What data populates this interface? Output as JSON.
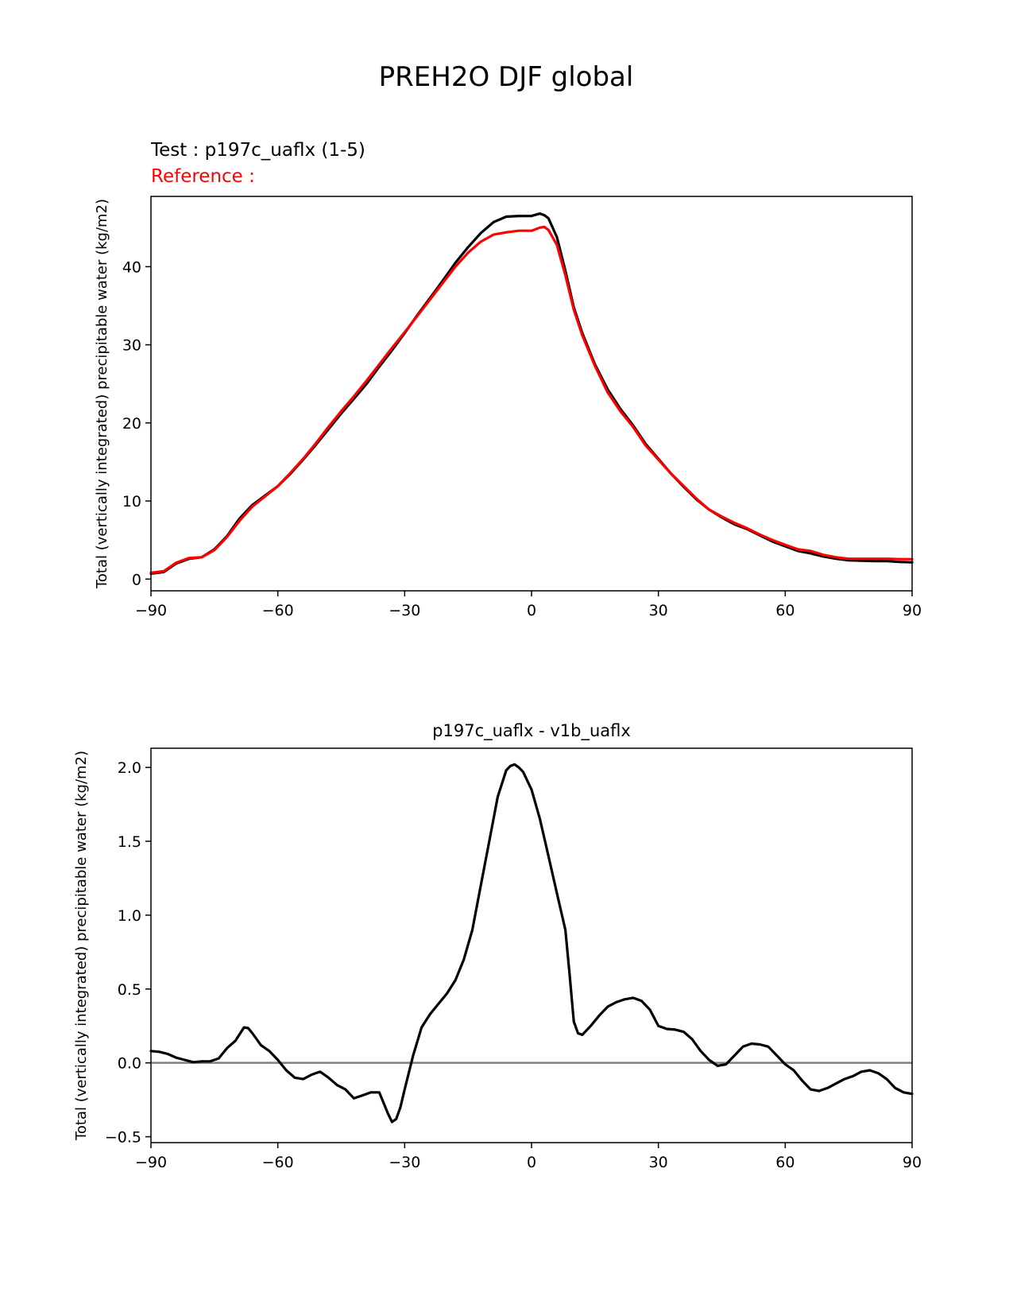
{
  "figure": {
    "title": "PREH2O DJF global"
  },
  "chart_data": [
    {
      "type": "line",
      "title": "",
      "test_label": "Test : p197c_uaflx (1-5)",
      "reference_label": "Reference :",
      "xlabel": "",
      "ylabel": "Total (vertically integrated) precipitable water (kg/m2)",
      "xlim": [
        -90,
        90
      ],
      "ylim": [
        -1.5,
        49
      ],
      "xticks": [
        -90,
        -60,
        -30,
        0,
        30,
        60,
        90
      ],
      "xtick_labels": [
        "−90",
        "−60",
        "−30",
        "0",
        "30",
        "60",
        "90"
      ],
      "yticks": [
        0,
        10,
        20,
        30,
        40
      ],
      "ytick_labels": [
        "0",
        "10",
        "20",
        "30",
        "40"
      ],
      "grid": false,
      "legend": "none",
      "series": [
        {
          "color": "#000000",
          "x": [
            -90,
            -87,
            -84,
            -81,
            -78,
            -75,
            -72,
            -69,
            -66,
            -63,
            -60,
            -57,
            -54,
            -51,
            -48,
            -45,
            -42,
            -39,
            -36,
            -33,
            -30,
            -27,
            -24,
            -21,
            -18,
            -15,
            -12,
            -9,
            -6,
            -3,
            0,
            2,
            3,
            4,
            6,
            8,
            10,
            12,
            15,
            18,
            21,
            24,
            27,
            30,
            33,
            36,
            39,
            42,
            45,
            48,
            51,
            54,
            57,
            60,
            63,
            66,
            69,
            72,
            75,
            78,
            81,
            84,
            87,
            90
          ],
          "values": [
            0.7,
            0.9,
            2.0,
            2.6,
            2.8,
            3.8,
            5.5,
            7.8,
            9.5,
            10.7,
            11.9,
            13.5,
            15.3,
            17.2,
            19.2,
            21.2,
            23.1,
            25.0,
            27.2,
            29.3,
            31.5,
            33.8,
            36.0,
            38.2,
            40.5,
            42.5,
            44.3,
            45.7,
            46.4,
            46.5,
            46.5,
            46.8,
            46.6,
            46.2,
            43.8,
            39.5,
            34.8,
            31.5,
            27.5,
            24.3,
            21.8,
            19.7,
            17.3,
            15.4,
            13.5,
            11.8,
            10.2,
            8.9,
            7.9,
            7.0,
            6.4,
            5.6,
            4.8,
            4.2,
            3.6,
            3.3,
            2.9,
            2.6,
            2.4,
            2.35,
            2.3,
            2.3,
            2.2,
            2.15
          ]
        },
        {
          "color": "#ff0000",
          "x": [
            -90,
            -87,
            -84,
            -81,
            -78,
            -75,
            -72,
            -69,
            -66,
            -63,
            -60,
            -57,
            -54,
            -51,
            -48,
            -45,
            -42,
            -39,
            -36,
            -33,
            -30,
            -27,
            -24,
            -21,
            -18,
            -15,
            -12,
            -9,
            -6,
            -3,
            0,
            2,
            3,
            4,
            6,
            8,
            10,
            12,
            15,
            18,
            21,
            24,
            27,
            30,
            33,
            36,
            39,
            42,
            45,
            48,
            51,
            54,
            57,
            60,
            63,
            66,
            69,
            72,
            75,
            78,
            81,
            84,
            87,
            90
          ],
          "values": [
            0.8,
            1.0,
            2.1,
            2.7,
            2.8,
            3.7,
            5.4,
            7.5,
            9.3,
            10.6,
            11.9,
            13.6,
            15.4,
            17.4,
            19.5,
            21.5,
            23.4,
            25.4,
            27.5,
            29.6,
            31.6,
            33.7,
            35.8,
            37.9,
            40.0,
            41.8,
            43.2,
            44.1,
            44.4,
            44.6,
            44.6,
            45.0,
            45.1,
            44.7,
            42.8,
            38.9,
            34.5,
            31.2,
            27.3,
            23.9,
            21.5,
            19.5,
            17.1,
            15.3,
            13.5,
            11.9,
            10.3,
            8.9,
            8.0,
            7.2,
            6.5,
            5.7,
            5.0,
            4.4,
            3.8,
            3.6,
            3.1,
            2.8,
            2.6,
            2.6,
            2.6,
            2.6,
            2.55,
            2.55
          ]
        }
      ]
    },
    {
      "type": "line",
      "title": "p197c_uaflx - v1b_uaflx",
      "xlabel": "",
      "ylabel": "Total (vertically integrated) precipitable water (kg/m2)",
      "xlim": [
        -90,
        90
      ],
      "ylim": [
        -0.54,
        2.13
      ],
      "xticks": [
        -90,
        -60,
        -30,
        0,
        30,
        60,
        90
      ],
      "xtick_labels": [
        "−90",
        "−60",
        "−30",
        "0",
        "30",
        "60",
        "90"
      ],
      "yticks": [
        -0.5,
        0.0,
        0.5,
        1.0,
        1.5,
        2.0
      ],
      "ytick_labels": [
        "−0.5",
        "0.0",
        "0.5",
        "1.0",
        "1.5",
        "2.0"
      ],
      "grid": false,
      "legend": "none",
      "zero_line": {
        "y": 0,
        "color": "#808080"
      },
      "series": [
        {
          "color": "#000000",
          "x": [
            -90,
            -88,
            -86,
            -84,
            -82,
            -80,
            -78,
            -76,
            -74,
            -72,
            -70,
            -68,
            -67,
            -66,
            -64,
            -62,
            -60,
            -58,
            -56,
            -54,
            -52,
            -50,
            -48,
            -46,
            -44,
            -42,
            -40,
            -38,
            -36,
            -34,
            -33,
            -32,
            -31,
            -30,
            -28,
            -26,
            -24,
            -22,
            -20,
            -18,
            -16,
            -14,
            -12,
            -10,
            -8,
            -6,
            -5,
            -4,
            -3,
            -2,
            0,
            2,
            4,
            6,
            8,
            9,
            10,
            11,
            12,
            14,
            16,
            18,
            20,
            22,
            24,
            25,
            26,
            28,
            30,
            32,
            34,
            36,
            38,
            40,
            42,
            44,
            46,
            48,
            50,
            52,
            54,
            56,
            58,
            60,
            62,
            64,
            66,
            68,
            70,
            72,
            74,
            76,
            78,
            80,
            82,
            84,
            86,
            88,
            90
          ],
          "values": [
            0.08,
            0.075,
            0.06,
            0.035,
            0.02,
            0.005,
            0.01,
            0.01,
            0.03,
            0.1,
            0.15,
            0.24,
            0.235,
            0.2,
            0.12,
            0.08,
            0.02,
            -0.05,
            -0.1,
            -0.11,
            -0.08,
            -0.06,
            -0.1,
            -0.15,
            -0.18,
            -0.24,
            -0.22,
            -0.2,
            -0.2,
            -0.34,
            -0.4,
            -0.38,
            -0.3,
            -0.18,
            0.05,
            0.24,
            0.33,
            0.4,
            0.47,
            0.56,
            0.7,
            0.9,
            1.2,
            1.5,
            1.8,
            1.98,
            2.01,
            2.02,
            2.0,
            1.97,
            1.85,
            1.65,
            1.4,
            1.15,
            0.9,
            0.6,
            0.28,
            0.2,
            0.19,
            0.25,
            0.32,
            0.38,
            0.41,
            0.43,
            0.44,
            0.43,
            0.42,
            0.36,
            0.25,
            0.23,
            0.225,
            0.21,
            0.16,
            0.08,
            0.02,
            -0.02,
            -0.01,
            0.05,
            0.11,
            0.13,
            0.125,
            0.11,
            0.05,
            -0.01,
            -0.05,
            -0.12,
            -0.18,
            -0.19,
            -0.17,
            -0.14,
            -0.11,
            -0.09,
            -0.06,
            -0.05,
            -0.07,
            -0.11,
            -0.17,
            -0.2,
            -0.21
          ]
        }
      ]
    }
  ]
}
